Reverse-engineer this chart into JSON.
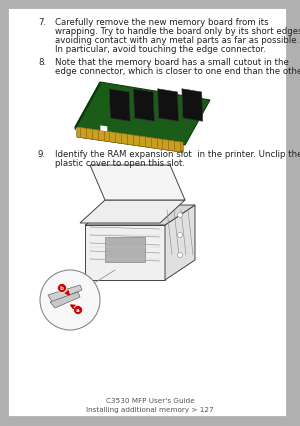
{
  "bg_color": "#ffffff",
  "page_bg": "#b0b0b0",
  "text_color": "#222222",
  "step7_num": "7.",
  "step7_text_line1": "Carefully remove the new memory board from its",
  "step7_text_line2": "wrapping. Try to handle the board only by its short edges,",
  "step7_text_line3": "avoiding contact with any metal parts as far as possible.",
  "step7_text_line4": "In particular, avoid touching the edge connector.",
  "step8_num": "8.",
  "step8_text_line1": "Note that the memory board has a small cutout in the",
  "step8_text_line2": "edge connector, which is closer to one end than the other.",
  "step9_num": "9.",
  "step9_text_line1": "Identify the RAM expansion slot  in the printer. Unclip the",
  "step9_text_line2": "plastic cover to open this slot.",
  "footer_line1": "C3530 MFP User's Guide",
  "footer_line2": "Installing additional memory > 127",
  "font_size_body": 6.2,
  "font_size_footer": 5.2
}
